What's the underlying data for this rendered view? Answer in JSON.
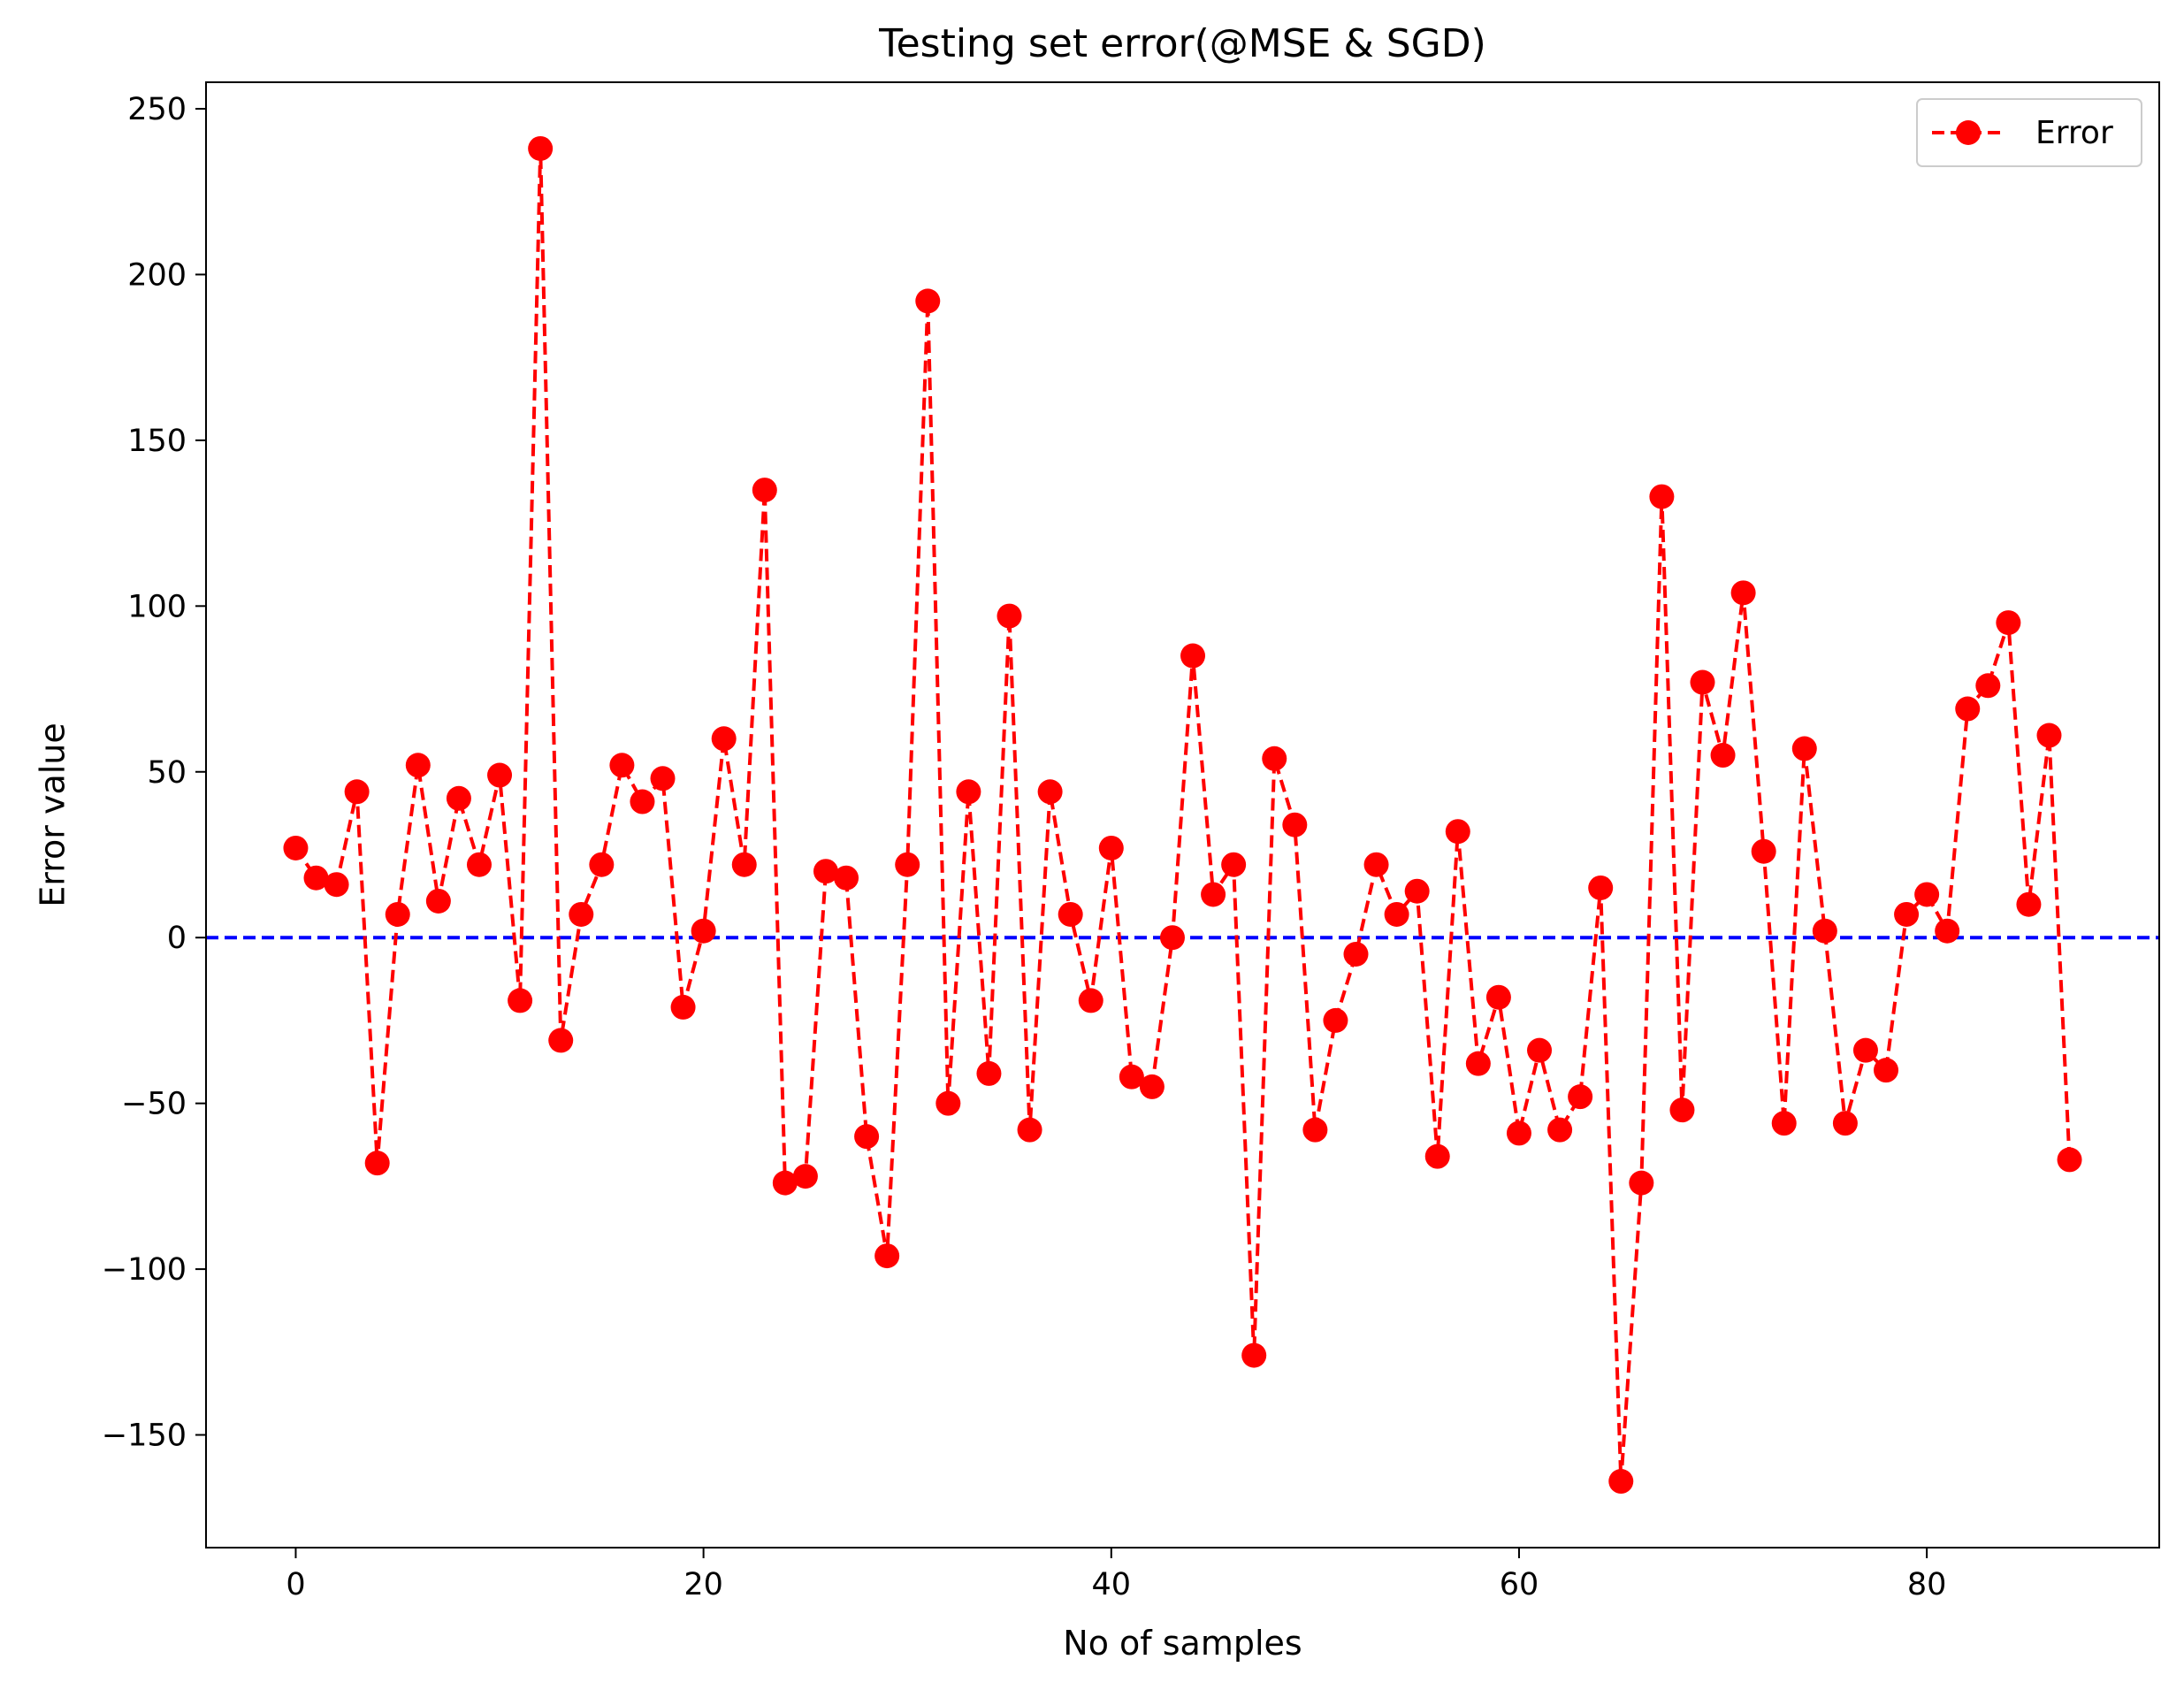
{
  "chart_data": {
    "type": "line",
    "title": "Testing set error(@MSE & SGD)",
    "xlabel": "No of samples",
    "ylabel": "Error value",
    "xlim": [
      -4.4,
      91.4
    ],
    "ylim": [
      -184,
      258
    ],
    "x_ticks": [
      0,
      20,
      40,
      60,
      80
    ],
    "y_ticks": [
      -150,
      -100,
      -50,
      0,
      50,
      100,
      150,
      200,
      250
    ],
    "x_tick_labels": [
      "0",
      "20",
      "40",
      "60",
      "80"
    ],
    "y_tick_labels": [
      "−150",
      "−100",
      "−50",
      "0",
      "50",
      "100",
      "150",
      "200",
      "250"
    ],
    "grid": false,
    "legend_position": "top-right",
    "series": [
      {
        "name": "Error",
        "color": "#ff0000",
        "line_style": "dashed",
        "marker": "circle",
        "x": [
          0,
          1,
          2,
          3,
          4,
          5,
          6,
          7,
          8,
          9,
          10,
          11,
          12,
          13,
          14,
          15,
          16,
          17,
          18,
          19,
          20,
          21,
          22,
          23,
          24,
          25,
          26,
          27,
          28,
          29,
          30,
          31,
          32,
          33,
          34,
          35,
          36,
          37,
          38,
          39,
          40,
          41,
          42,
          43,
          44,
          45,
          46,
          47,
          48,
          49,
          50,
          51,
          52,
          53,
          54,
          55,
          56,
          57,
          58,
          59,
          60,
          61,
          62,
          63,
          64,
          65,
          66,
          67,
          68,
          69,
          70,
          71,
          72,
          73,
          74,
          75,
          76,
          77,
          78,
          79,
          80,
          81,
          82,
          83,
          84,
          85,
          86,
          87
        ],
        "values": [
          27,
          18,
          16,
          44,
          -68,
          7,
          52,
          11,
          42,
          22,
          49,
          -19,
          238,
          -31,
          7,
          22,
          52,
          41,
          48,
          -21,
          2,
          60,
          22,
          135,
          -74,
          -72,
          20,
          18,
          -60,
          -96,
          22,
          192,
          -50,
          44,
          -41,
          97,
          -58,
          44,
          7,
          -19,
          27,
          -42,
          -45,
          0,
          85,
          13,
          22,
          -126,
          54,
          34,
          -58,
          -25,
          -5,
          22,
          7,
          14,
          -66,
          32,
          -38,
          -18,
          -59,
          -34,
          -58,
          -48,
          15,
          -164,
          -74,
          133,
          -52,
          77,
          55,
          104,
          26,
          -56,
          57,
          2,
          -56,
          -34,
          -40,
          7,
          13,
          2,
          69,
          76,
          95,
          10,
          61,
          -67
        ]
      }
    ],
    "reference_line": {
      "y": 0,
      "color": "#0000ff",
      "line_style": "dashed"
    }
  }
}
